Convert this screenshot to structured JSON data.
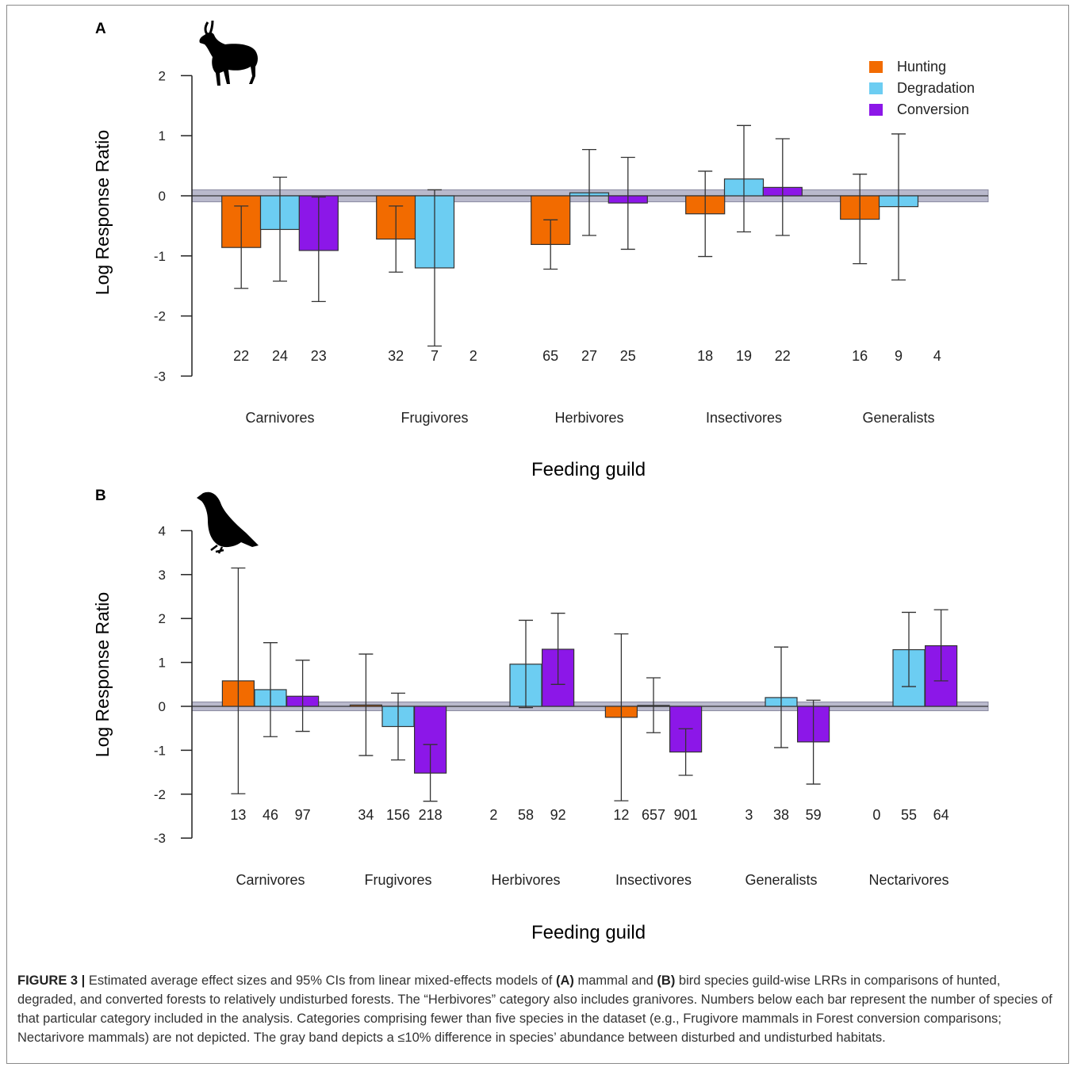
{
  "colors": {
    "hunting": "#f26b00",
    "degradation": "#6ccdf2",
    "conversion": "#8c17e8",
    "band": "#b9b9cc"
  },
  "legend": [
    {
      "label": "Hunting",
      "color": "#f26b00"
    },
    {
      "label": "Degradation",
      "color": "#6ccdf2"
    },
    {
      "label": "Conversion",
      "color": "#8c17e8"
    }
  ],
  "panels": [
    {
      "letter": "A",
      "icon": "antelope-silhouette-icon"
    },
    {
      "letter": "B",
      "icon": "pigeon-silhouette-icon"
    }
  ],
  "chart_data": [
    {
      "type": "bar",
      "panel": "A",
      "ylabel": "Log Response Ratio",
      "xlabel": "Feeding guild",
      "ylim": [
        -3,
        2
      ],
      "yticks": [
        2,
        1,
        0,
        -1,
        -2,
        -3
      ],
      "reference_band": [
        -0.1,
        0.1
      ],
      "categories": [
        "Carnivores",
        "Frugivores",
        "Herbivores",
        "Insectivores",
        "Generalists"
      ],
      "series": [
        {
          "name": "Hunting",
          "values": [
            -0.86,
            -0.72,
            -0.81,
            -0.3,
            -0.39
          ],
          "ci_low": [
            -1.54,
            -1.27,
            -1.22,
            -1.01,
            -1.13
          ],
          "ci_high": [
            -0.17,
            -0.17,
            -0.4,
            0.41,
            0.36
          ],
          "n": [
            "22",
            "32",
            "65",
            "18",
            "16"
          ]
        },
        {
          "name": "Degradation",
          "values": [
            -0.56,
            -1.2,
            0.05,
            0.28,
            -0.18
          ],
          "ci_low": [
            -1.42,
            -2.5,
            -0.66,
            -0.6,
            -1.4
          ],
          "ci_high": [
            0.31,
            0.1,
            0.77,
            1.17,
            1.03
          ],
          "n": [
            "24",
            "7",
            "27",
            "19",
            "9"
          ]
        },
        {
          "name": "Conversion",
          "values": [
            -0.91,
            null,
            -0.12,
            0.14,
            null
          ],
          "ci_low": [
            -1.76,
            null,
            -0.89,
            -0.66,
            null
          ],
          "ci_high": [
            -0.02,
            null,
            0.64,
            0.95,
            null
          ],
          "n": [
            "23",
            "2",
            "25",
            "22",
            "4"
          ]
        }
      ]
    },
    {
      "type": "bar",
      "panel": "B",
      "ylabel": "Log Response Ratio",
      "xlabel": "Feeding guild",
      "ylim": [
        -3,
        4
      ],
      "yticks": [
        4,
        3,
        2,
        1,
        0,
        -1,
        -2,
        -3
      ],
      "reference_band": [
        -0.1,
        0.1
      ],
      "categories": [
        "Carnivores",
        "Frugivores",
        "Herbivores",
        "Insectivores",
        "Generalists",
        "Nectarivores"
      ],
      "series": [
        {
          "name": "Hunting",
          "values": [
            0.58,
            0.03,
            null,
            -0.25,
            null,
            null
          ],
          "ci_low": [
            -1.99,
            -1.12,
            null,
            -2.15,
            null,
            null
          ],
          "ci_high": [
            3.15,
            1.19,
            null,
            1.65,
            null,
            null
          ],
          "n": [
            "13",
            "34",
            "2",
            "12",
            "3",
            "0"
          ]
        },
        {
          "name": "Degradation",
          "values": [
            0.38,
            -0.46,
            0.96,
            0.02,
            0.2,
            1.29
          ],
          "ci_low": [
            -0.69,
            -1.22,
            -0.03,
            -0.6,
            -0.94,
            0.45
          ],
          "ci_high": [
            1.45,
            0.3,
            1.96,
            0.65,
            1.35,
            2.14
          ],
          "n": [
            "46",
            "156",
            "58",
            "657",
            "38",
            "55"
          ]
        },
        {
          "name": "Conversion",
          "values": [
            0.23,
            -1.52,
            1.3,
            -1.04,
            -0.81,
            1.38
          ],
          "ci_low": [
            -0.57,
            -2.16,
            0.5,
            -1.57,
            -1.77,
            0.58
          ],
          "ci_high": [
            1.05,
            -0.87,
            2.12,
            -0.51,
            0.14,
            2.2
          ],
          "n": [
            "97",
            "218",
            "92",
            "901",
            "59",
            "64"
          ]
        }
      ]
    }
  ],
  "caption": {
    "label": "FIGURE 3 |",
    "t1": " Estimated average effect sizes and 95% CIs from linear mixed-effects models of ",
    "a": "(A)",
    "t2": " mammal and ",
    "b": "(B)",
    "t3": " bird species guild-wise LRRs in comparisons of hunted, degraded, and converted forests to relatively undisturbed forests. The “Herbivores” category also includes granivores. Numbers below each bar represent the number of species of that particular category included in the analysis. Categories comprising fewer than five species in the dataset (e.g., Frugivore mammals in Forest conversion comparisons; Nectarivore mammals) are not depicted. The gray band depicts a ≤10% difference in species’ abundance between disturbed and undisturbed habitats."
  }
}
